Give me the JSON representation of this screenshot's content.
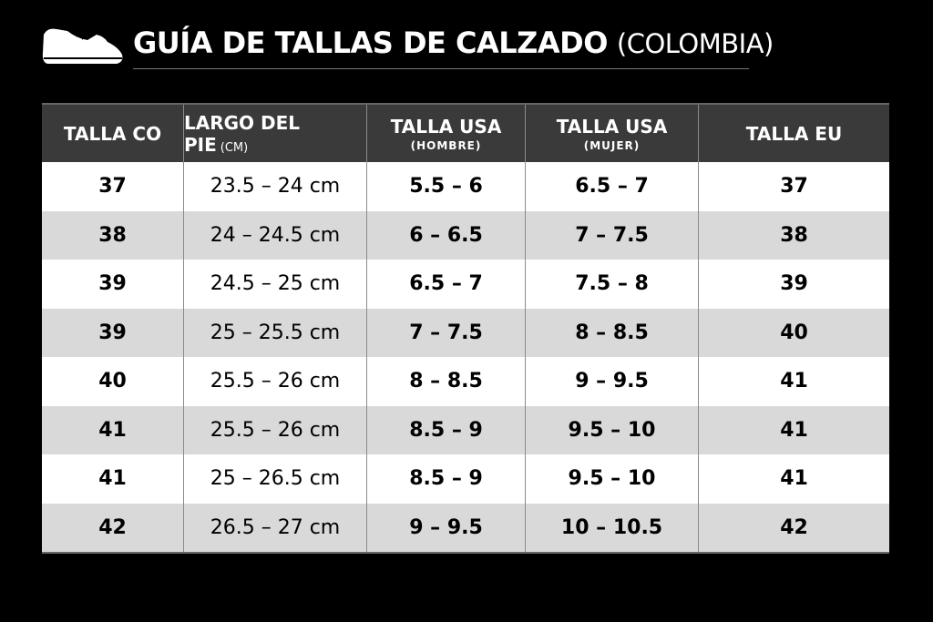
{
  "header": {
    "title": "GUÍA DE TALLAS DE CALZADO",
    "region": "(COLOMBIA)"
  },
  "table": {
    "columns": [
      {
        "label": "TALLA CO"
      },
      {
        "label": "LARGO DEL PIE",
        "unit": "(CM)"
      },
      {
        "label": "TALLA USA",
        "sub": "(HOMBRE)"
      },
      {
        "label": "TALLA USA",
        "sub": "(MUJER)"
      },
      {
        "label": "TALLA EU"
      }
    ],
    "rows": [
      [
        "37",
        "23.5 – 24 cm",
        "5.5 – 6",
        "6.5 – 7",
        "37"
      ],
      [
        "38",
        "24 – 24.5 cm",
        "6 – 6.5",
        "7 – 7.5",
        "38"
      ],
      [
        "39",
        "24.5 – 25 cm",
        "6.5 – 7",
        "7.5 – 8",
        "39"
      ],
      [
        "39",
        "25 – 25.5 cm",
        "7 – 7.5",
        "8 – 8.5",
        "40"
      ],
      [
        "40",
        "25.5 – 26 cm",
        "8 – 8.5",
        "9 – 9.5",
        "41"
      ],
      [
        "41",
        "25.5 – 26 cm",
        "8.5 – 9",
        "9.5 – 10",
        "41"
      ],
      [
        "41",
        "25 – 26.5 cm",
        "8.5 – 9",
        "9.5 – 10",
        "41"
      ],
      [
        "42",
        "26.5 – 27 cm",
        "9 – 9.5",
        "10 – 10.5",
        "42"
      ]
    ]
  }
}
